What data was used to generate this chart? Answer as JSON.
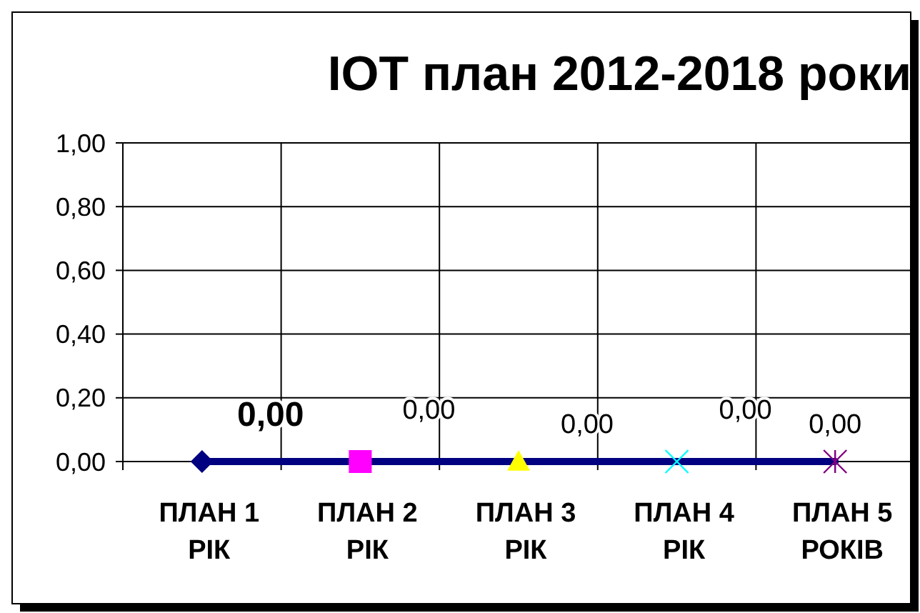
{
  "chart_data": {
    "type": "line",
    "title": "IOT план 2012-2018 роки",
    "categories": [
      "ПЛАН 1 РІК",
      "ПЛАН 2 РІК",
      "ПЛАН 3 РІК",
      "ПЛАН 4 РІК",
      "ПЛАН 5 РОКІВ"
    ],
    "series": [
      {
        "color": "#000080",
        "colors": [
          "#000080",
          "#ff00ff",
          "#ffff00",
          "#00ffff",
          "#800080"
        ],
        "values": [
          0,
          0,
          0,
          0,
          0
        ],
        "value_labels": [
          "0,00",
          "0,00",
          "0,00",
          "0,00",
          "0,00"
        ]
      }
    ],
    "ylim": [
      0,
      1
    ],
    "yticks": [
      {
        "value": 0,
        "label": "0,00"
      },
      {
        "value": 0.2,
        "label": "0,20"
      },
      {
        "value": 0.4,
        "label": "0,40"
      },
      {
        "value": 0.6,
        "label": "0,60"
      },
      {
        "value": 0.8,
        "label": "0,80"
      },
      {
        "value": 1,
        "label": "1,00"
      }
    ],
    "grid": true,
    "marker": "diamond",
    "line_style": "solid"
  }
}
